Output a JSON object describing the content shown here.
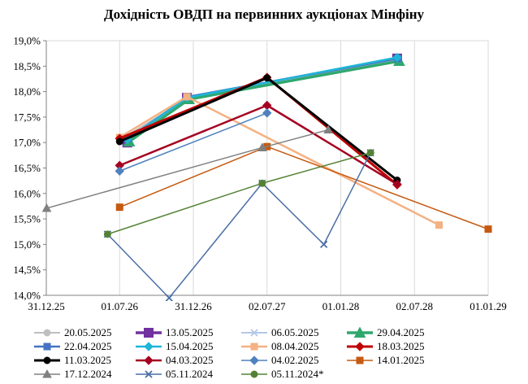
{
  "chart_data": {
    "type": "line",
    "title": "Дохідність ОВДП на первинних аукціонах Мінфіну",
    "xlabel": "",
    "ylabel": "",
    "x_tick_labels": [
      "31.12.25",
      "01.07.26",
      "31.12.26",
      "02.07.27",
      "01.01.28",
      "02.07.28",
      "01.01.29"
    ],
    "x_ticks": [
      "2025-12-31",
      "2026-07-01",
      "2026-12-31",
      "2027-07-02",
      "2028-01-01",
      "2028-07-02",
      "2029-01-01"
    ],
    "x_range": [
      "2025-12-31",
      "2029-01-01"
    ],
    "y_tick_labels": [
      "14,0%",
      "14,5%",
      "15,0%",
      "15,5%",
      "16,0%",
      "16,5%",
      "17,0%",
      "17,5%",
      "18,0%",
      "18,5%",
      "19,0%"
    ],
    "ylim": [
      14.0,
      19.0
    ],
    "y_unit": "%",
    "grid": "vertical",
    "legend_position": "bottom",
    "series": [
      {
        "name": "20.05.2025",
        "color": "#bfbfbf",
        "marker": "circle",
        "width": 2,
        "points": [
          [
            "2026-07-01",
            17.05
          ],
          [
            "2026-12-15",
            17.85
          ]
        ]
      },
      {
        "name": "13.05.2025",
        "color": "#7030a0",
        "marker": "square",
        "width": 3.5,
        "points": [
          [
            "2026-07-20",
            17.0
          ],
          [
            "2026-12-15",
            17.88
          ],
          [
            "2028-05-20",
            18.65
          ]
        ]
      },
      {
        "name": "06.05.2025",
        "color": "#b4c7e7",
        "marker": "x",
        "width": 2,
        "points": [
          [
            "2026-07-20",
            17.0
          ],
          [
            "2026-12-15",
            17.87
          ],
          [
            "2028-05-20",
            18.63
          ]
        ]
      },
      {
        "name": "29.04.2025",
        "color": "#2fa86e",
        "marker": "triangle",
        "width": 3.5,
        "points": [
          [
            "2026-07-25",
            17.02
          ],
          [
            "2026-12-20",
            17.85
          ],
          [
            "2028-05-25",
            18.6
          ]
        ]
      },
      {
        "name": "22.04.2025",
        "color": "#4472c4",
        "marker": "square",
        "width": 2.5,
        "points": [
          [
            "2026-07-22",
            17.08
          ],
          [
            "2026-12-18",
            17.9
          ],
          [
            "2028-05-22",
            18.65
          ]
        ]
      },
      {
        "name": "15.04.2025",
        "color": "#1fb5d9",
        "marker": "diamond",
        "width": 2.5,
        "points": [
          [
            "2026-07-20",
            17.06
          ],
          [
            "2026-12-15",
            17.88
          ],
          [
            "2028-05-20",
            18.67
          ]
        ]
      },
      {
        "name": "08.04.2025",
        "color": "#f4b183",
        "marker": "square",
        "width": 2.5,
        "points": [
          [
            "2026-07-01",
            17.1
          ],
          [
            "2026-12-15",
            17.9
          ],
          [
            "2028-09-01",
            15.38
          ]
        ]
      },
      {
        "name": "18.03.2025",
        "color": "#c00000",
        "marker": "diamond",
        "width": 3,
        "points": [
          [
            "2026-07-01",
            17.08
          ],
          [
            "2027-07-02",
            18.28
          ],
          [
            "2028-05-20",
            16.17
          ]
        ]
      },
      {
        "name": "11.03.2025",
        "color": "#000000",
        "marker": "circle",
        "width": 3,
        "points": [
          [
            "2026-07-01",
            17.02
          ],
          [
            "2027-07-02",
            18.27
          ],
          [
            "2028-05-20",
            16.26
          ]
        ]
      },
      {
        "name": "04.03.2025",
        "color": "#a50021",
        "marker": "diamond",
        "width": 2.5,
        "points": [
          [
            "2026-07-01",
            16.55
          ],
          [
            "2027-07-02",
            17.73
          ],
          [
            "2028-05-20",
            16.18
          ]
        ]
      },
      {
        "name": "04.02.2025",
        "color": "#4f81bd",
        "marker": "diamond",
        "width": 1.5,
        "points": [
          [
            "2026-07-01",
            16.44
          ],
          [
            "2027-07-02",
            17.58
          ]
        ]
      },
      {
        "name": "14.01.2025",
        "color": "#c55a11",
        "marker": "square",
        "width": 1.5,
        "points": [
          [
            "2026-07-01",
            15.73
          ],
          [
            "2027-07-02",
            16.92
          ],
          [
            "2029-01-01",
            15.3
          ]
        ]
      },
      {
        "name": "17.12.2024",
        "color": "#808080",
        "marker": "triangle",
        "width": 1.5,
        "points": [
          [
            "2026-01-01",
            15.71
          ],
          [
            "2027-06-20",
            16.9
          ],
          [
            "2027-12-01",
            17.25
          ]
        ]
      },
      {
        "name": "05.11.2024",
        "color": "#4a6fa5",
        "marker": "x",
        "width": 1.5,
        "points": [
          [
            "2026-06-01",
            15.2
          ],
          [
            "2026-11-01",
            13.95
          ],
          [
            "2027-06-20",
            16.2
          ],
          [
            "2027-11-20",
            15.0
          ],
          [
            "2028-03-15",
            16.8
          ]
        ]
      },
      {
        "name": "05.11.2024*",
        "color": "#548235",
        "marker": "circle",
        "width": 1.5,
        "points": [
          [
            "2026-06-01",
            15.2
          ],
          [
            "2027-06-20",
            16.2
          ],
          [
            "2028-03-15",
            16.8
          ]
        ]
      }
    ],
    "legend_order": [
      "20.05.2025",
      "13.05.2025",
      "06.05.2025",
      "29.04.2025",
      "22.04.2025",
      "15.04.2025",
      "08.04.2025",
      "18.03.2025",
      "11.03.2025",
      "04.03.2025",
      "04.02.2025",
      "14.01.2025",
      "17.12.2024",
      "05.11.2024",
      "05.11.2024*"
    ]
  }
}
